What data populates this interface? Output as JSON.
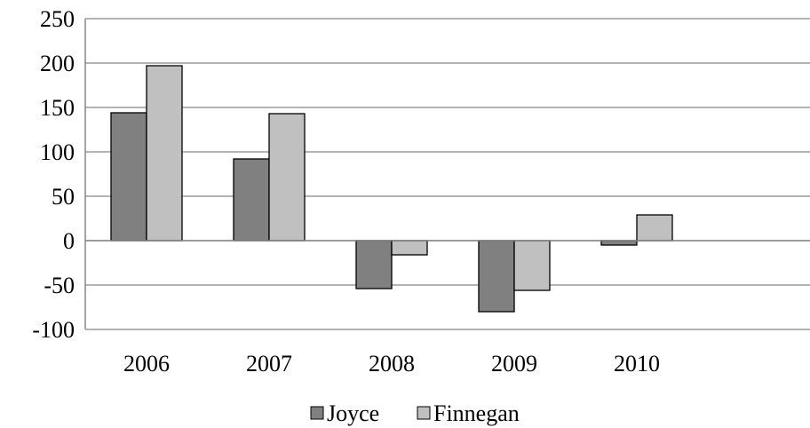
{
  "chart_data": {
    "type": "bar",
    "categories": [
      "2006",
      "2007",
      "2008",
      "2009",
      "2010"
    ],
    "series": [
      {
        "name": "Joyce",
        "values": [
          144,
          92,
          -54,
          -80,
          -5
        ],
        "color": "#808080"
      },
      {
        "name": "Finnegan",
        "values": [
          197,
          143,
          -16,
          -56,
          29
        ],
        "color": "#c0c0c0"
      }
    ],
    "ylim": [
      -100,
      250
    ],
    "yticks": [
      "-100",
      "-50",
      "0",
      "50",
      "100",
      "150",
      "200",
      "250"
    ],
    "grid": true,
    "legend": "bottom"
  }
}
